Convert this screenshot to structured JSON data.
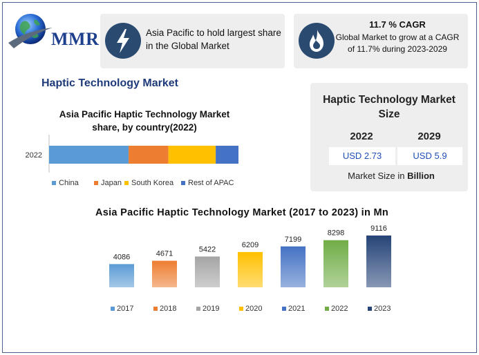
{
  "logo": {
    "text": "MMR",
    "icon": "globe-icon"
  },
  "cards": [
    {
      "icon": "lightning-icon",
      "text": "Asia Pacific to hold largest share in the Global Market"
    },
    {
      "icon": "flame-icon",
      "title": "11.7 % CAGR",
      "text": "Global Market to grow at a CAGR of 11.7% during 2023-2029"
    }
  ],
  "main_title": "Haptic Technology Market",
  "market_size": {
    "title": "Haptic Technology Market Size",
    "years": [
      "2022",
      "2029"
    ],
    "values": [
      "USD 2.73",
      "USD 5.9"
    ],
    "note_prefix": "Market Size in ",
    "note_unit": "Billion"
  },
  "colors": {
    "dark_blue": "#2a4a70",
    "title_blue": "#1f3a7a",
    "value_blue": "#1f4fb8"
  },
  "chart_data": [
    {
      "type": "bar",
      "orientation": "horizontal",
      "stacked": true,
      "title": "Asia Pacific Haptic Technology Market share, by country(2022)",
      "categories": [
        "2022"
      ],
      "series": [
        {
          "name": "China",
          "values": [
            42
          ],
          "color": "#5b9bd5"
        },
        {
          "name": "Japan",
          "values": [
            21
          ],
          "color": "#ed7d31"
        },
        {
          "name": "South Korea",
          "values": [
            25
          ],
          "color": "#ffc000"
        },
        {
          "name": "Rest of APAC",
          "values": [
            12
          ],
          "color": "#4472c4"
        }
      ],
      "legend": "bottom"
    },
    {
      "type": "bar",
      "title": "Asia Pacific Haptic Technology Market (2017 to 2023) in Mn",
      "categories": [
        "2017",
        "2018",
        "2019",
        "2020",
        "2021",
        "2022",
        "2023"
      ],
      "values": [
        4086,
        4671,
        5422,
        6209,
        7199,
        8298,
        9116
      ],
      "colors": [
        "#5b9bd5",
        "#ed7d31",
        "#a5a5a5",
        "#ffc000",
        "#4472c4",
        "#70ad47",
        "#264478"
      ],
      "ylim": [
        0,
        9116
      ],
      "legend": "bottom",
      "grid": false
    }
  ]
}
